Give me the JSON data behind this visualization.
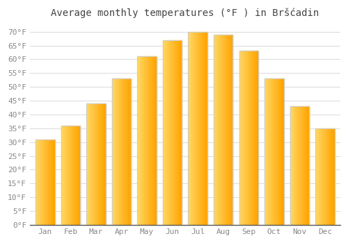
{
  "title": "Average monthly temperatures (°F ) in Bršćadin",
  "months": [
    "Jan",
    "Feb",
    "Mar",
    "Apr",
    "May",
    "Jun",
    "Jul",
    "Aug",
    "Sep",
    "Oct",
    "Nov",
    "Dec"
  ],
  "values": [
    31,
    36,
    44,
    53,
    61,
    67,
    70,
    69,
    63,
    53,
    43,
    35
  ],
  "bar_color_left": "#FFD966",
  "bar_color_right": "#FFA500",
  "bar_edge_color": "#CCCCCC",
  "ylim": [
    0,
    73
  ],
  "yticks": [
    0,
    5,
    10,
    15,
    20,
    25,
    30,
    35,
    40,
    45,
    50,
    55,
    60,
    65,
    70
  ],
  "ytick_labels": [
    "0°F",
    "5°F",
    "10°F",
    "15°F",
    "20°F",
    "25°F",
    "30°F",
    "35°F",
    "40°F",
    "45°F",
    "50°F",
    "55°F",
    "60°F",
    "65°F",
    "70°F"
  ],
  "background_color": "#FFFFFF",
  "plot_bg_color": "#FFFFFF",
  "grid_color": "#DDDDDD",
  "title_fontsize": 10,
  "tick_fontsize": 8,
  "bar_width": 0.75,
  "title_color": "#444444",
  "tick_color": "#888888",
  "axis_color": "#555555"
}
